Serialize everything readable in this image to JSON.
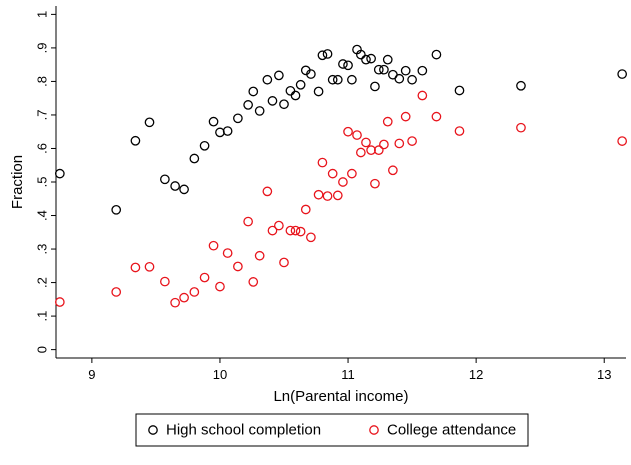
{
  "chart_data": {
    "type": "scatter",
    "title": "",
    "xlabel": "Ln(Parental income)",
    "ylabel": "Fraction",
    "xlim": [
      8.72,
      13.17
    ],
    "ylim": [
      -0.025,
      1.025
    ],
    "xticks": [
      9,
      10,
      11,
      12,
      13
    ],
    "xtick_labels": [
      "9",
      "10",
      "11",
      "12",
      "13"
    ],
    "yticks": [
      0,
      0.1,
      0.2,
      0.3,
      0.4,
      0.5,
      0.6,
      0.7,
      0.8,
      0.9,
      1
    ],
    "ytick_labels": [
      "0",
      ".1",
      ".2",
      ".3",
      ".4",
      ".5",
      ".6",
      ".7",
      ".8",
      ".9",
      "1"
    ],
    "grid": false,
    "legend_position": "bottom",
    "series": [
      {
        "name": "High school completion",
        "color": "#000000",
        "marker": "hollow-circle",
        "points": [
          [
            8.75,
            0.525
          ],
          [
            9.19,
            0.417
          ],
          [
            9.34,
            0.623
          ],
          [
            9.45,
            0.678
          ],
          [
            9.57,
            0.508
          ],
          [
            9.65,
            0.488
          ],
          [
            9.72,
            0.478
          ],
          [
            9.8,
            0.57
          ],
          [
            9.88,
            0.608
          ],
          [
            9.95,
            0.68
          ],
          [
            10.0,
            0.648
          ],
          [
            10.06,
            0.652
          ],
          [
            10.14,
            0.69
          ],
          [
            10.22,
            0.73
          ],
          [
            10.26,
            0.77
          ],
          [
            10.31,
            0.712
          ],
          [
            10.37,
            0.805
          ],
          [
            10.41,
            0.742
          ],
          [
            10.46,
            0.818
          ],
          [
            10.5,
            0.732
          ],
          [
            10.55,
            0.772
          ],
          [
            10.59,
            0.758
          ],
          [
            10.63,
            0.79
          ],
          [
            10.67,
            0.833
          ],
          [
            10.71,
            0.822
          ],
          [
            10.77,
            0.77
          ],
          [
            10.8,
            0.878
          ],
          [
            10.84,
            0.882
          ],
          [
            10.88,
            0.805
          ],
          [
            10.92,
            0.805
          ],
          [
            10.96,
            0.852
          ],
          [
            11.0,
            0.848
          ],
          [
            11.03,
            0.805
          ],
          [
            11.07,
            0.895
          ],
          [
            11.1,
            0.88
          ],
          [
            11.14,
            0.865
          ],
          [
            11.18,
            0.868
          ],
          [
            11.21,
            0.785
          ],
          [
            11.24,
            0.835
          ],
          [
            11.28,
            0.835
          ],
          [
            11.31,
            0.865
          ],
          [
            11.35,
            0.82
          ],
          [
            11.4,
            0.808
          ],
          [
            11.45,
            0.832
          ],
          [
            11.5,
            0.805
          ],
          [
            11.58,
            0.832
          ],
          [
            11.69,
            0.88
          ],
          [
            11.87,
            0.773
          ],
          [
            12.35,
            0.787
          ],
          [
            13.14,
            0.822
          ]
        ]
      },
      {
        "name": "College attendance",
        "color": "#e8141c",
        "marker": "hollow-circle",
        "points": [
          [
            8.75,
            0.142
          ],
          [
            9.19,
            0.172
          ],
          [
            9.34,
            0.245
          ],
          [
            9.45,
            0.247
          ],
          [
            9.57,
            0.203
          ],
          [
            9.65,
            0.14
          ],
          [
            9.72,
            0.155
          ],
          [
            9.8,
            0.172
          ],
          [
            9.88,
            0.215
          ],
          [
            9.95,
            0.31
          ],
          [
            10.0,
            0.188
          ],
          [
            10.06,
            0.288
          ],
          [
            10.14,
            0.248
          ],
          [
            10.22,
            0.382
          ],
          [
            10.26,
            0.202
          ],
          [
            10.31,
            0.28
          ],
          [
            10.37,
            0.472
          ],
          [
            10.41,
            0.355
          ],
          [
            10.46,
            0.37
          ],
          [
            10.5,
            0.26
          ],
          [
            10.55,
            0.355
          ],
          [
            10.59,
            0.355
          ],
          [
            10.63,
            0.352
          ],
          [
            10.67,
            0.418
          ],
          [
            10.71,
            0.335
          ],
          [
            10.77,
            0.462
          ],
          [
            10.8,
            0.558
          ],
          [
            10.84,
            0.458
          ],
          [
            10.88,
            0.525
          ],
          [
            10.92,
            0.46
          ],
          [
            10.96,
            0.5
          ],
          [
            11.0,
            0.65
          ],
          [
            11.03,
            0.525
          ],
          [
            11.07,
            0.64
          ],
          [
            11.1,
            0.588
          ],
          [
            11.14,
            0.618
          ],
          [
            11.18,
            0.595
          ],
          [
            11.21,
            0.495
          ],
          [
            11.24,
            0.595
          ],
          [
            11.28,
            0.612
          ],
          [
            11.31,
            0.68
          ],
          [
            11.35,
            0.535
          ],
          [
            11.4,
            0.615
          ],
          [
            11.45,
            0.695
          ],
          [
            11.5,
            0.622
          ],
          [
            11.58,
            0.758
          ],
          [
            11.69,
            0.695
          ],
          [
            11.87,
            0.652
          ],
          [
            12.35,
            0.662
          ],
          [
            13.14,
            0.622
          ]
        ]
      }
    ]
  }
}
